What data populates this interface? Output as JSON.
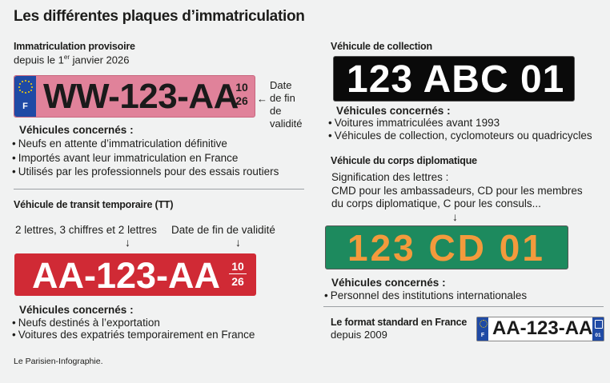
{
  "title": "Les différentes plaques d’immatriculation",
  "provisoire": {
    "heading": "Immatriculation provisoire",
    "since_pre": "depuis le 1",
    "since_sup": "er",
    "since_post": " janvier 2026",
    "plate": "WW-123-AA",
    "eu_letter": "F",
    "date_top": "10",
    "date_bottom": "26",
    "annotation_arrow": "←",
    "annotation": [
      "Date",
      "de fin",
      "de",
      "validité"
    ],
    "concerned_label": "Véhicules concernés :",
    "items": [
      "Neufs en attente d’immatriculation définitive",
      "Importés avant leur immatriculation en France",
      "Utilisés par les professionnels pour des essais routiers"
    ],
    "colors": {
      "plate_bg": "#e0829a",
      "eu_band": "#1f4aa5"
    }
  },
  "transit": {
    "heading": "Véhicule de transit temporaire (TT)",
    "label_left": "2 lettres, 3 chiffres et 2 lettres",
    "label_right": "Date de fin de validité",
    "arrow": "↓",
    "plate": "AA-123-AA",
    "date_top": "10",
    "date_bottom": "26",
    "concerned_label": "Véhicules concernés :",
    "items": [
      "Neufs destinés à l’exportation",
      "Voitures des expatriés temporairement en France"
    ],
    "colors": {
      "plate_bg": "#d02a35"
    }
  },
  "collection": {
    "heading": "Véhicule de collection",
    "plate": "123 ABC 01",
    "concerned_label": "Véhicules concernés :",
    "items": [
      "Voitures immatriculées avant 1993",
      "Véhicules de collection, cyclomoteurs ou quadricycles"
    ],
    "colors": {
      "plate_bg": "#0a0a0a"
    }
  },
  "diplomatique": {
    "heading": "Véhicule du corps diplomatique",
    "desc": [
      "Signification des lettres :",
      "CMD pour les ambassadeurs, CD pour les membres",
      "du corps diplomatique, C pour les consuls..."
    ],
    "arrow": "↓",
    "plate": "123 CD 01",
    "concerned_label": "Véhicules concernés :",
    "items": [
      "Personnel des institutions internationales"
    ],
    "colors": {
      "plate_bg": "#1d8a5e",
      "plate_text": "#f39a3c"
    }
  },
  "standard": {
    "heading": "Le format standard en France",
    "since": "depuis 2009",
    "plate": "AA-123-AA",
    "eu_letter": "F",
    "dept": "01"
  },
  "source": "Le Parisien-Infographie."
}
